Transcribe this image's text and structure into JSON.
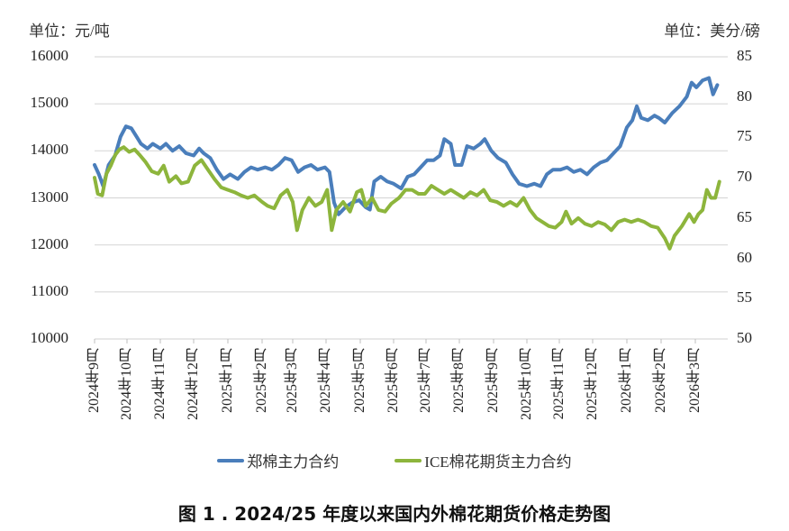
{
  "chart_data": {
    "type": "line",
    "title": "图 1 . 2024/25 年度以来国内外棉花期货价格走势图",
    "y_left": {
      "label": "单位：元/吨",
      "ticks": [
        16000,
        15000,
        14000,
        13000,
        12000,
        11000,
        10000
      ],
      "ylim": [
        10000,
        16000
      ]
    },
    "y_right": {
      "label": "单位：美分/磅",
      "ticks": [
        85,
        80,
        75,
        70,
        65,
        60,
        55,
        50
      ],
      "ylim": [
        50,
        85
      ]
    },
    "x_ticks": [
      "2024年9月",
      "2024年10月",
      "2024年11月",
      "2024年12月",
      "2025年1月",
      "2025年2月",
      "2025年3月",
      "2025年4月",
      "2025年5月",
      "2025年6月",
      "2025年7月",
      "2025年8月",
      "2025年9月",
      "2025年10月",
      "2025年11月",
      "2025年12月",
      "2026年1月",
      "2026年2月",
      "2026年3月"
    ],
    "grid": "horizontal",
    "legend_position": "bottom",
    "series": [
      {
        "name": "郑棉主力合约",
        "axis": "left",
        "color": "#4a7ebb",
        "points": [
          [
            "2024-09-01",
            13700
          ],
          [
            "2024-09-05",
            13500
          ],
          [
            "2024-09-09",
            13250
          ],
          [
            "2024-09-14",
            13700
          ],
          [
            "2024-09-20",
            13900
          ],
          [
            "2024-09-25",
            14300
          ],
          [
            "2024-09-30",
            14520
          ],
          [
            "2024-10-05",
            14480
          ],
          [
            "2024-10-10",
            14300
          ],
          [
            "2024-10-14",
            14150
          ],
          [
            "2024-10-20",
            14050
          ],
          [
            "2024-10-25",
            14150
          ],
          [
            "2024-11-01",
            14050
          ],
          [
            "2024-11-06",
            14150
          ],
          [
            "2024-11-12",
            14000
          ],
          [
            "2024-11-18",
            14100
          ],
          [
            "2024-11-24",
            13950
          ],
          [
            "2024-12-01",
            13900
          ],
          [
            "2024-12-06",
            14050
          ],
          [
            "2024-12-10",
            13950
          ],
          [
            "2024-12-16",
            13850
          ],
          [
            "2024-12-22",
            13600
          ],
          [
            "2024-12-28",
            13400
          ],
          [
            "2025-01-03",
            13500
          ],
          [
            "2025-01-10",
            13400
          ],
          [
            "2025-01-16",
            13550
          ],
          [
            "2025-01-22",
            13650
          ],
          [
            "2025-01-28",
            13600
          ],
          [
            "2025-02-04",
            13650
          ],
          [
            "2025-02-10",
            13600
          ],
          [
            "2025-02-16",
            13700
          ],
          [
            "2025-02-22",
            13850
          ],
          [
            "2025-02-28",
            13800
          ],
          [
            "2025-03-06",
            13550
          ],
          [
            "2025-03-12",
            13650
          ],
          [
            "2025-03-18",
            13700
          ],
          [
            "2025-03-24",
            13600
          ],
          [
            "2025-03-31",
            13650
          ],
          [
            "2025-04-04",
            13550
          ],
          [
            "2025-04-08",
            12900
          ],
          [
            "2025-04-12",
            12650
          ],
          [
            "2025-04-18",
            12800
          ],
          [
            "2025-04-24",
            12900
          ],
          [
            "2025-04-30",
            12950
          ],
          [
            "2025-05-06",
            12800
          ],
          [
            "2025-05-10",
            12750
          ],
          [
            "2025-05-14",
            13350
          ],
          [
            "2025-05-20",
            13450
          ],
          [
            "2025-05-26",
            13350
          ],
          [
            "2025-06-01",
            13300
          ],
          [
            "2025-06-08",
            13200
          ],
          [
            "2025-06-14",
            13450
          ],
          [
            "2025-06-20",
            13500
          ],
          [
            "2025-06-26",
            13650
          ],
          [
            "2025-07-02",
            13800
          ],
          [
            "2025-07-08",
            13800
          ],
          [
            "2025-07-14",
            13900
          ],
          [
            "2025-07-18",
            14250
          ],
          [
            "2025-07-24",
            14150
          ],
          [
            "2025-07-28",
            13700
          ],
          [
            "2025-08-03",
            13700
          ],
          [
            "2025-08-08",
            14100
          ],
          [
            "2025-08-14",
            14050
          ],
          [
            "2025-08-20",
            14150
          ],
          [
            "2025-08-24",
            14250
          ],
          [
            "2025-08-30",
            14000
          ],
          [
            "2025-09-05",
            13850
          ],
          [
            "2025-09-12",
            13750
          ],
          [
            "2025-09-18",
            13500
          ],
          [
            "2025-09-24",
            13300
          ],
          [
            "2025-10-01",
            13250
          ],
          [
            "2025-10-08",
            13300
          ],
          [
            "2025-10-14",
            13250
          ],
          [
            "2025-10-20",
            13500
          ],
          [
            "2025-10-26",
            13600
          ],
          [
            "2025-11-02",
            13600
          ],
          [
            "2025-11-08",
            13650
          ],
          [
            "2025-11-14",
            13550
          ],
          [
            "2025-11-20",
            13600
          ],
          [
            "2025-11-26",
            13500
          ],
          [
            "2025-12-02",
            13650
          ],
          [
            "2025-12-08",
            13750
          ],
          [
            "2025-12-14",
            13800
          ],
          [
            "2025-12-20",
            13950
          ],
          [
            "2025-12-26",
            14100
          ],
          [
            "2026-01-01",
            14500
          ],
          [
            "2026-01-06",
            14650
          ],
          [
            "2026-01-10",
            14950
          ],
          [
            "2026-01-14",
            14700
          ],
          [
            "2026-01-20",
            14650
          ],
          [
            "2026-01-26",
            14750
          ],
          [
            "2026-01-30",
            14700
          ],
          [
            "2026-02-04",
            14600
          ],
          [
            "2026-02-10",
            14800
          ],
          [
            "2026-02-16",
            14950
          ],
          [
            "2026-02-22",
            15150
          ],
          [
            "2026-02-26",
            15450
          ],
          [
            "2026-03-02",
            15350
          ],
          [
            "2026-03-08",
            15500
          ],
          [
            "2026-03-14",
            15550
          ],
          [
            "2026-03-18",
            15200
          ],
          [
            "2026-03-22",
            15400
          ]
        ]
      },
      {
        "name": "ICE棉花期货主力合约",
        "axis": "right",
        "color": "#8db53c",
        "points": [
          [
            "2024-09-01",
            70.0
          ],
          [
            "2024-09-04",
            68.0
          ],
          [
            "2024-09-08",
            67.8
          ],
          [
            "2024-09-12",
            70.5
          ],
          [
            "2024-09-16",
            71.5
          ],
          [
            "2024-09-20",
            72.8
          ],
          [
            "2024-09-24",
            73.5
          ],
          [
            "2024-09-28",
            73.8
          ],
          [
            "2024-10-03",
            73.2
          ],
          [
            "2024-10-08",
            73.5
          ],
          [
            "2024-10-13",
            72.8
          ],
          [
            "2024-10-18",
            72.0
          ],
          [
            "2024-10-24",
            70.8
          ],
          [
            "2024-10-30",
            70.5
          ],
          [
            "2024-11-04",
            71.5
          ],
          [
            "2024-11-09",
            69.5
          ],
          [
            "2024-11-15",
            70.2
          ],
          [
            "2024-11-20",
            69.3
          ],
          [
            "2024-11-26",
            69.5
          ],
          [
            "2024-12-02",
            71.5
          ],
          [
            "2024-12-08",
            72.2
          ],
          [
            "2024-12-14",
            71.0
          ],
          [
            "2024-12-20",
            69.8
          ],
          [
            "2024-12-26",
            68.8
          ],
          [
            "2025-01-01",
            68.5
          ],
          [
            "2025-01-07",
            68.2
          ],
          [
            "2025-01-13",
            67.8
          ],
          [
            "2025-01-19",
            67.5
          ],
          [
            "2025-01-25",
            67.8
          ],
          [
            "2025-02-01",
            67.0
          ],
          [
            "2025-02-06",
            66.5
          ],
          [
            "2025-02-12",
            66.2
          ],
          [
            "2025-02-18",
            67.8
          ],
          [
            "2025-02-24",
            68.5
          ],
          [
            "2025-03-01",
            67.0
          ],
          [
            "2025-03-05",
            63.5
          ],
          [
            "2025-03-10",
            66.0
          ],
          [
            "2025-03-16",
            67.5
          ],
          [
            "2025-03-22",
            66.5
          ],
          [
            "2025-03-28",
            67.0
          ],
          [
            "2025-04-02",
            68.5
          ],
          [
            "2025-04-06",
            63.5
          ],
          [
            "2025-04-10",
            66.0
          ],
          [
            "2025-04-16",
            67.0
          ],
          [
            "2025-04-22",
            65.8
          ],
          [
            "2025-04-28",
            68.2
          ],
          [
            "2025-05-02",
            68.5
          ],
          [
            "2025-05-06",
            66.5
          ],
          [
            "2025-05-12",
            67.5
          ],
          [
            "2025-05-18",
            66.0
          ],
          [
            "2025-05-24",
            65.8
          ],
          [
            "2025-05-30",
            66.8
          ],
          [
            "2025-06-06",
            67.5
          ],
          [
            "2025-06-12",
            68.5
          ],
          [
            "2025-06-18",
            68.5
          ],
          [
            "2025-06-24",
            68.0
          ],
          [
            "2025-06-30",
            68.0
          ],
          [
            "2025-07-06",
            69.0
          ],
          [
            "2025-07-12",
            68.5
          ],
          [
            "2025-07-18",
            68.0
          ],
          [
            "2025-07-24",
            68.5
          ],
          [
            "2025-07-30",
            68.0
          ],
          [
            "2025-08-05",
            67.5
          ],
          [
            "2025-08-11",
            68.2
          ],
          [
            "2025-08-17",
            67.8
          ],
          [
            "2025-08-23",
            68.5
          ],
          [
            "2025-08-29",
            67.2
          ],
          [
            "2025-09-04",
            67.0
          ],
          [
            "2025-09-10",
            66.5
          ],
          [
            "2025-09-16",
            67.0
          ],
          [
            "2025-09-22",
            66.5
          ],
          [
            "2025-09-28",
            67.5
          ],
          [
            "2025-10-04",
            66.0
          ],
          [
            "2025-10-10",
            65.0
          ],
          [
            "2025-10-16",
            64.5
          ],
          [
            "2025-10-22",
            64.0
          ],
          [
            "2025-10-28",
            63.8
          ],
          [
            "2025-11-03",
            64.5
          ],
          [
            "2025-11-07",
            65.8
          ],
          [
            "2025-11-12",
            64.3
          ],
          [
            "2025-11-18",
            65.0
          ],
          [
            "2025-11-24",
            64.3
          ],
          [
            "2025-11-30",
            64.0
          ],
          [
            "2025-12-06",
            64.5
          ],
          [
            "2025-12-12",
            64.2
          ],
          [
            "2025-12-18",
            63.5
          ],
          [
            "2025-12-24",
            64.5
          ],
          [
            "2025-12-30",
            64.8
          ],
          [
            "2026-01-05",
            64.5
          ],
          [
            "2026-01-11",
            64.8
          ],
          [
            "2026-01-17",
            64.5
          ],
          [
            "2026-01-23",
            64.0
          ],
          [
            "2026-01-29",
            63.8
          ],
          [
            "2026-02-04",
            62.5
          ],
          [
            "2026-02-08",
            61.2
          ],
          [
            "2026-02-12",
            62.8
          ],
          [
            "2026-02-18",
            64.0
          ],
          [
            "2026-02-24",
            65.5
          ],
          [
            "2026-02-28",
            64.5
          ],
          [
            "2026-03-04",
            65.5
          ],
          [
            "2026-03-08",
            66.0
          ],
          [
            "2026-03-12",
            68.5
          ],
          [
            "2026-03-16",
            67.5
          ],
          [
            "2026-03-20",
            67.5
          ],
          [
            "2026-03-24",
            69.5
          ]
        ]
      }
    ]
  },
  "labels": {
    "unit_left": "单位：元/吨",
    "unit_right": "单位：美分/磅",
    "legend": [
      "郑棉主力合约",
      "ICE棉花期货主力合约"
    ],
    "caption": "图 1 . 2024/25 年度以来国内外棉花期货价格走势图"
  },
  "colors": {
    "series1": "#4a7ebb",
    "series2": "#8db53c",
    "grid": "#d9d9d9"
  }
}
